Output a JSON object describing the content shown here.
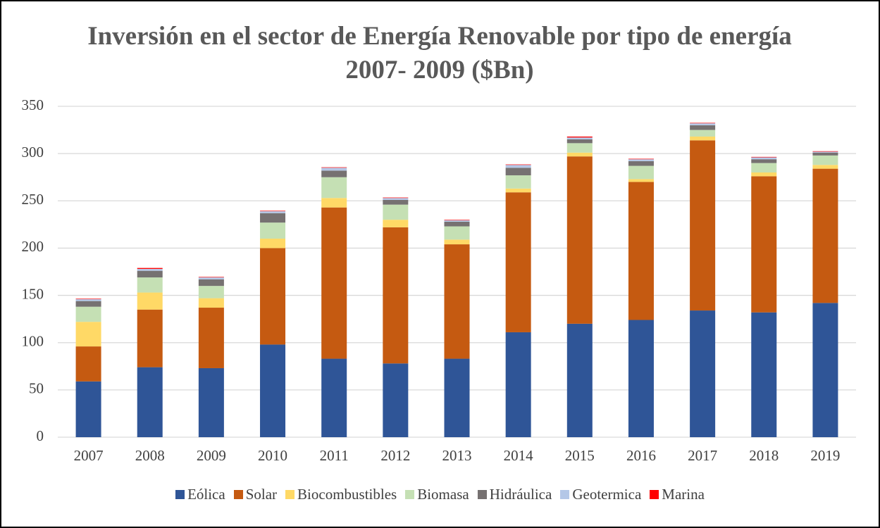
{
  "chart_data": {
    "type": "stacked_bar",
    "title": "Inversión en el sector de Energía Renovable por tipo de energía 2007- 2009 ($Bn)",
    "categories": [
      "2007",
      "2008",
      "2009",
      "2010",
      "2011",
      "2012",
      "2013",
      "2014",
      "2015",
      "2016",
      "2017",
      "2018",
      "2019"
    ],
    "series": [
      {
        "name": "Eólica",
        "color": "#2f5597",
        "values": [
          59,
          74,
          73,
          98,
          83,
          78,
          83,
          111,
          120,
          124,
          134,
          132,
          142
        ]
      },
      {
        "name": "Solar",
        "color": "#c55a11",
        "values": [
          37,
          61,
          64,
          102,
          160,
          144,
          121,
          148,
          177,
          146,
          180,
          144,
          142
        ]
      },
      {
        "name": "Biocombustibles",
        "color": "#ffd966",
        "values": [
          26,
          18,
          10,
          10,
          10,
          8,
          5,
          4,
          4,
          3,
          4,
          4,
          4
        ]
      },
      {
        "name": "Biomasa",
        "color": "#c5e0b4",
        "values": [
          16,
          16,
          13,
          17,
          22,
          16,
          14,
          14,
          10,
          14,
          7,
          10,
          10
        ]
      },
      {
        "name": "Hidráulica",
        "color": "#767171",
        "values": [
          6,
          7,
          7,
          10,
          7,
          5,
          5,
          8,
          4,
          5,
          5,
          4,
          3
        ]
      },
      {
        "name": "Geotermica",
        "color": "#b4c7e7",
        "values": [
          2,
          2,
          2,
          2,
          3,
          2,
          1.5,
          3,
          2,
          2,
          2,
          2,
          1
        ]
      },
      {
        "name": "Marina",
        "color": "#ff0000",
        "values": [
          0.5,
          1,
          0.5,
          0.5,
          0.5,
          0.5,
          0.5,
          0.5,
          1,
          0.5,
          0.5,
          0.5,
          0.5
        ]
      }
    ],
    "ylim": [
      0,
      350
    ],
    "yticks": [
      0,
      50,
      100,
      150,
      200,
      250,
      300,
      350
    ],
    "grid": true,
    "legend": "bottom"
  }
}
